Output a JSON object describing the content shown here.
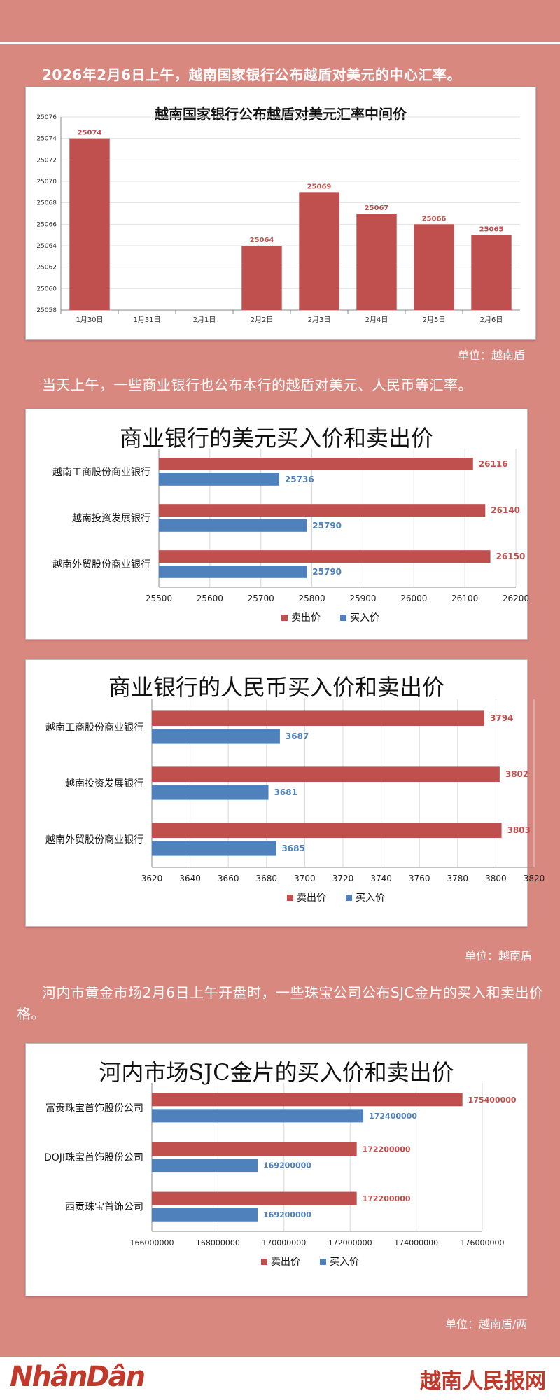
{
  "intro1": "2026年2月6日上午，越南国家银行公布越盾对美元的中心汇率。",
  "unit1": "单位：越南盾",
  "intro2": "当天上午，一些商业银行也公布本行的越盾对美元、人民币等汇率。",
  "unit2": "单位：越南盾",
  "intro3": "河内市黄金市场2月6日上午开盘时，一些珠宝公司公布SJC金片的买入和卖出价格。",
  "unit3": "单位：越南盾/两",
  "footer": {
    "logo": "NhânDân",
    "site": "越南人民报网"
  },
  "colors": {
    "sell": "#c0504d",
    "buy": "#4f81bd",
    "background": "#d98880"
  },
  "chart_data": [
    {
      "type": "bar",
      "title": "越南国家银行公布越盾对美元汇率中间价",
      "categories": [
        "1月30日",
        "1月31日",
        "2月1日",
        "2月2日",
        "2月3日",
        "2月4日",
        "2月5日",
        "2月6日"
      ],
      "values": [
        25074,
        null,
        null,
        25064,
        25069,
        25067,
        25066,
        25065
      ],
      "ylim": [
        25058,
        25076
      ],
      "yticks": [
        25058,
        25060,
        25062,
        25064,
        25066,
        25068,
        25070,
        25072,
        25074,
        25076
      ],
      "color": "#c0504d"
    },
    {
      "type": "bar",
      "orientation": "horizontal",
      "title": "商业银行的美元买入价和卖出价",
      "categories": [
        "越南工商股份商业银行",
        "越南投资发展银行",
        "越南外贸股份商业银行"
      ],
      "series": [
        {
          "name": "卖出价",
          "values": [
            26116,
            26140,
            26150
          ],
          "color": "#c0504d"
        },
        {
          "name": "买入价",
          "values": [
            25736,
            25790,
            25790
          ],
          "color": "#4f81bd"
        }
      ],
      "xlim": [
        25500,
        26200
      ],
      "xticks": [
        25500,
        25600,
        25700,
        25800,
        25900,
        26000,
        26100,
        26200
      ],
      "legend": "bottom"
    },
    {
      "type": "bar",
      "orientation": "horizontal",
      "title": "商业银行的人民币买入价和卖出价",
      "categories": [
        "越南工商股份商业银行",
        "越南投资发展银行",
        "越南外贸股份商业银行"
      ],
      "series": [
        {
          "name": "卖出价",
          "values": [
            3794,
            3802,
            3803
          ],
          "color": "#c0504d"
        },
        {
          "name": "买入价",
          "values": [
            3687,
            3681,
            3685
          ],
          "color": "#4f81bd"
        }
      ],
      "xlim": [
        3620,
        3820
      ],
      "xticks": [
        3620,
        3640,
        3660,
        3680,
        3700,
        3720,
        3740,
        3760,
        3780,
        3800,
        3820
      ],
      "legend": "bottom"
    },
    {
      "type": "bar",
      "orientation": "horizontal",
      "title": "河内市场SJC金片的买入价和卖出价",
      "categories": [
        "富贵珠宝首饰股份公司",
        "DOJI珠宝首饰股份公司",
        "西贡珠宝首饰公司"
      ],
      "series": [
        {
          "name": "卖出价",
          "values": [
            175400000,
            172200000,
            172200000
          ],
          "color": "#c0504d"
        },
        {
          "name": "买入价",
          "values": [
            172400000,
            169200000,
            169200000
          ],
          "color": "#4f81bd"
        }
      ],
      "xlim": [
        166000000,
        176000000
      ],
      "xticks": [
        166000000,
        168000000,
        170000000,
        172000000,
        174000000,
        176000000
      ],
      "legend": "bottom"
    }
  ]
}
